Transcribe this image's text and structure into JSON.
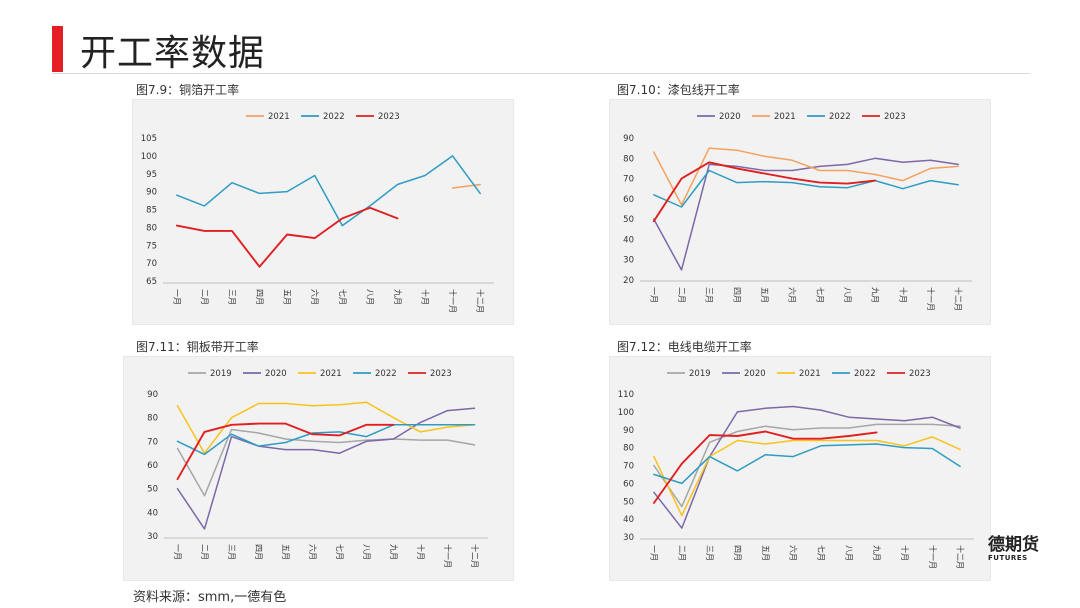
{
  "page": {
    "title": "开工率数据",
    "source": "资料来源：smm,一德有色",
    "logo_text": "德期货",
    "logo_sub": "FUTURES"
  },
  "months": [
    "一月",
    "二月",
    "三月",
    "四月",
    "五月",
    "六月",
    "七月",
    "八月",
    "九月",
    "十月",
    "十一月",
    "十二月"
  ],
  "chart_data": [
    {
      "id": "c1",
      "type": "line",
      "title": "图7.9：铜箔开工率",
      "categories": [
        "一月",
        "二月",
        "三月",
        "四月",
        "五月",
        "六月",
        "七月",
        "八月",
        "九月",
        "十月",
        "十一月",
        "十二月"
      ],
      "ylim": [
        65,
        105
      ],
      "yticks": [
        65,
        70,
        75,
        80,
        85,
        90,
        95,
        100,
        105
      ],
      "series": [
        {
          "name": "2021",
          "color": "#f4a15d",
          "values": [
            null,
            null,
            null,
            null,
            null,
            null,
            null,
            null,
            null,
            null,
            91,
            92
          ]
        },
        {
          "name": "2022",
          "color": "#2e9cc3",
          "values": [
            89,
            86,
            92.5,
            89.5,
            90,
            94.5,
            80.5,
            86,
            92,
            94.5,
            100,
            89.5
          ]
        },
        {
          "name": "2023",
          "color": "#e02020",
          "values": [
            80.5,
            79,
            79,
            69,
            78,
            77,
            82.5,
            85.5,
            82.5,
            null,
            null,
            null
          ]
        }
      ]
    },
    {
      "id": "c2",
      "type": "line",
      "title": "图7.10：漆包线开工率",
      "categories": [
        "一月",
        "二月",
        "三月",
        "四月",
        "五月",
        "六月",
        "七月",
        "八月",
        "九月",
        "十月",
        "十一月",
        "十二月"
      ],
      "ylim": [
        20,
        90
      ],
      "yticks": [
        20,
        30,
        40,
        50,
        60,
        70,
        80,
        90
      ],
      "series": [
        {
          "name": "2020",
          "color": "#7b68a8",
          "values": [
            50,
            25,
            77,
            76,
            74,
            74,
            76,
            77,
            80,
            78,
            79,
            77
          ]
        },
        {
          "name": "2021",
          "color": "#f4a15d",
          "values": [
            83,
            57,
            85,
            84,
            81,
            79,
            74,
            74,
            72,
            69,
            75,
            76
          ]
        },
        {
          "name": "2022",
          "color": "#2e9cc3",
          "values": [
            62,
            56,
            74,
            68,
            68.5,
            68,
            66,
            65.5,
            69,
            65,
            69,
            67
          ]
        },
        {
          "name": "2023",
          "color": "#e02020",
          "values": [
            49,
            70,
            78,
            75,
            72.5,
            70,
            68,
            67.5,
            69,
            null,
            null,
            null
          ]
        }
      ]
    },
    {
      "id": "c3",
      "type": "line",
      "title": "图7.11：铜板带开工率",
      "categories": [
        "一月",
        "二月",
        "三月",
        "四月",
        "五月",
        "六月",
        "七月",
        "八月",
        "九月",
        "十月",
        "十一月",
        "十二月"
      ],
      "ylim": [
        30,
        90
      ],
      "yticks": [
        30,
        40,
        50,
        60,
        70,
        80,
        90
      ],
      "series": [
        {
          "name": "2019",
          "color": "#a6a6a6",
          "values": [
            67,
            47,
            75,
            73.5,
            71,
            70,
            69.5,
            70.5,
            71,
            70.5,
            70.5,
            68.5
          ]
        },
        {
          "name": "2020",
          "color": "#7b68a8",
          "values": [
            50,
            33,
            72,
            68,
            66.5,
            66.5,
            65,
            70,
            71,
            78,
            83,
            84
          ]
        },
        {
          "name": "2021",
          "color": "#f9c21b",
          "values": [
            85,
            65,
            80,
            86,
            86,
            85,
            85.5,
            86.5,
            80,
            74,
            76,
            77
          ]
        },
        {
          "name": "2022",
          "color": "#2e9cc3",
          "values": [
            70,
            64.5,
            73,
            68,
            69.5,
            73.5,
            74,
            72,
            77,
            77,
            77,
            77
          ]
        },
        {
          "name": "2023",
          "color": "#e02020",
          "values": [
            54,
            74,
            77,
            77.5,
            77.5,
            73,
            72.5,
            77,
            77,
            null,
            null,
            null
          ]
        }
      ]
    },
    {
      "id": "c4",
      "type": "line",
      "title": "图7.12：电线电缆开工率",
      "categories": [
        "一月",
        "二月",
        "三月",
        "四月",
        "五月",
        "六月",
        "七月",
        "八月",
        "九月",
        "十月",
        "十一月",
        "十二月"
      ],
      "ylim": [
        30,
        110
      ],
      "yticks": [
        30,
        40,
        50,
        60,
        70,
        80,
        90,
        100,
        110
      ],
      "series": [
        {
          "name": "2019",
          "color": "#a6a6a6",
          "values": [
            70,
            47,
            83,
            89,
            92,
            90,
            91,
            91,
            93,
            93,
            93,
            92
          ]
        },
        {
          "name": "2020",
          "color": "#7b68a8",
          "values": [
            55,
            35,
            75,
            100,
            102,
            103,
            101,
            97,
            96,
            95,
            97,
            91
          ]
        },
        {
          "name": "2021",
          "color": "#f9c21b",
          "values": [
            75,
            42,
            75,
            84,
            82,
            84,
            84,
            84,
            84,
            81,
            86,
            79
          ]
        },
        {
          "name": "2022",
          "color": "#2e9cc3",
          "values": [
            65,
            60,
            75,
            67,
            76,
            75,
            81,
            81.5,
            82,
            80,
            79.5,
            69.5
          ]
        },
        {
          "name": "2023",
          "color": "#e02020",
          "values": [
            49,
            71,
            87,
            86.5,
            89,
            85,
            85,
            86.5,
            88.5,
            null,
            null,
            null
          ]
        }
      ]
    }
  ]
}
